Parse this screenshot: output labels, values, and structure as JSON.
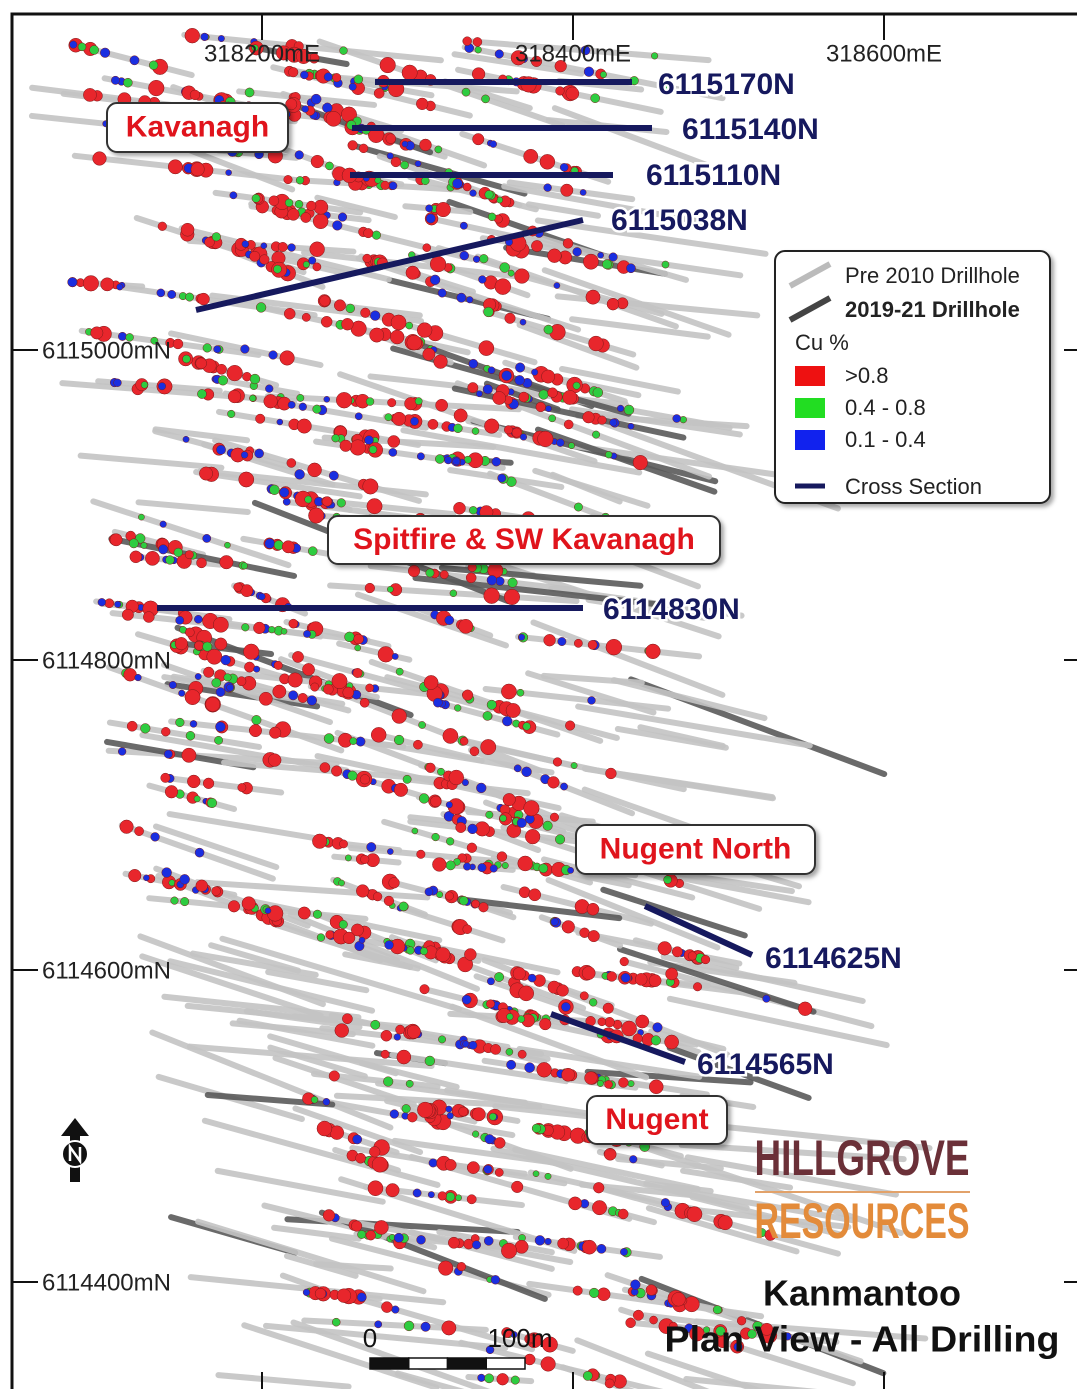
{
  "grid": {
    "eastings": [
      "318200mE",
      "318400mE",
      "318600mE"
    ],
    "northings": [
      "6115000mN",
      "6114800mN",
      "6114600mN",
      "6114400mN"
    ]
  },
  "sections": [
    "6115170N",
    "6115140N",
    "6115110N",
    "6115038N",
    "6114830N",
    "6114625N",
    "6114565N"
  ],
  "areas": [
    "Kavanagh",
    "Spitfire & SW Kavanagh",
    "Nugent North",
    "Nugent"
  ],
  "legend": {
    "drillholes": [
      "Pre 2010 Drillhole",
      "2019-21 Drillhole"
    ],
    "grade_title": "Cu %",
    "grades": [
      ">0.8",
      "0.4 - 0.8",
      "0.1 - 0.4"
    ],
    "cross_section": "Cross Section"
  },
  "logo": {
    "line1": "HILLGROVE",
    "line2": "RESOURCES"
  },
  "title": {
    "line1": "Kanmantoo",
    "line2": "Plan View - All Drilling"
  },
  "scale_bar": {
    "start": "0",
    "end": "100m"
  }
}
